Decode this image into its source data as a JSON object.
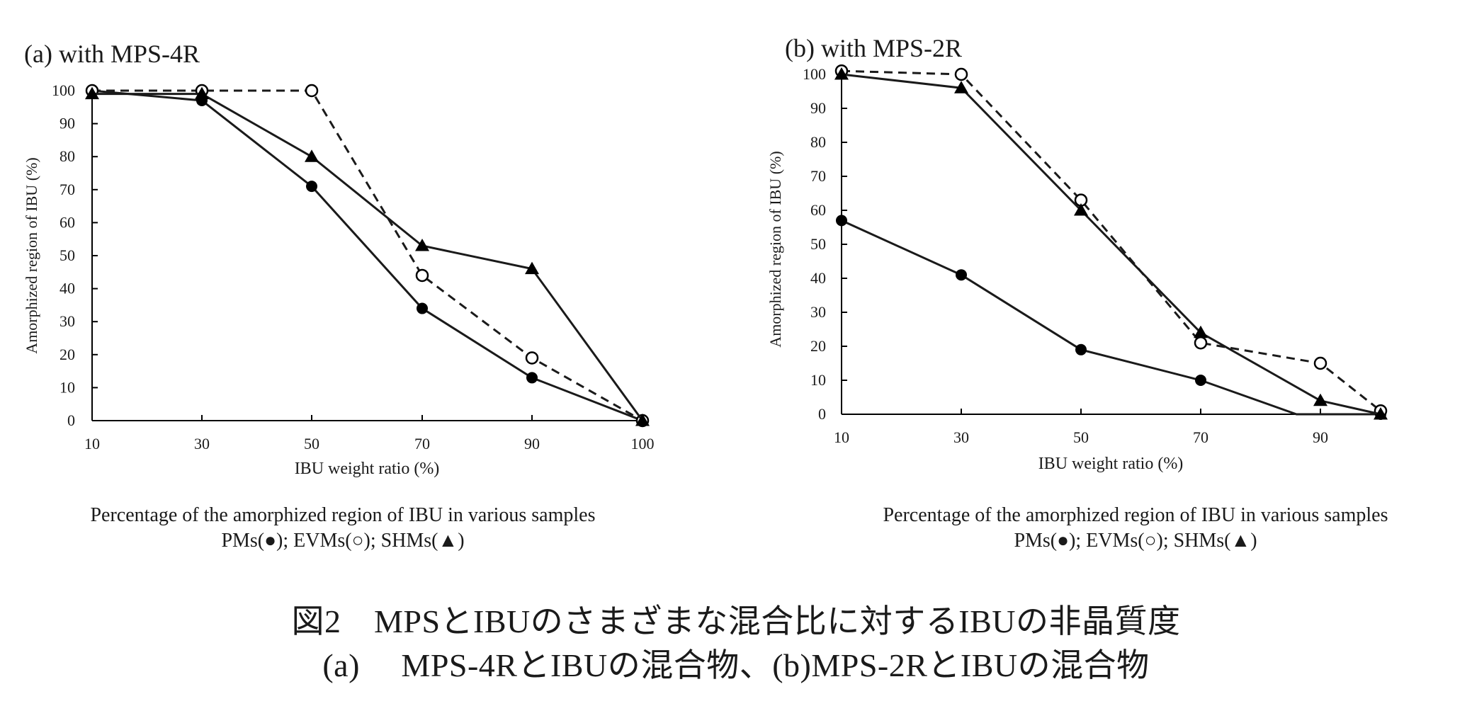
{
  "chart_data": [
    {
      "type": "line",
      "panel_label": "(a) with MPS-4R",
      "xlabel": "IBU weight ratio (%)",
      "ylabel": "Amorphized region of IBU (%)",
      "x_ticks": [
        "10",
        "30",
        "50",
        "70",
        "90",
        "100"
      ],
      "y_ticks": [
        "0",
        "10",
        "20",
        "30",
        "40",
        "50",
        "60",
        "70",
        "80",
        "90",
        "100"
      ],
      "ylim": [
        0,
        100
      ],
      "grid": false,
      "caption_line1": "Percentage of the amorphized region of IBU in various samples",
      "caption_line2": "PMs(●); EVMs(○); SHMs(▲)",
      "series": [
        {
          "marker": "filled-circle",
          "line": "solid",
          "x": [
            10,
            30,
            50,
            70,
            90,
            100
          ],
          "y": [
            100,
            97,
            71,
            34,
            13,
            0
          ]
        },
        {
          "marker": "open-circle",
          "line": "dashed",
          "x": [
            10,
            30,
            50,
            70,
            90,
            100
          ],
          "y": [
            100,
            100,
            100,
            44,
            19,
            0
          ]
        },
        {
          "marker": "filled-triangle",
          "line": "solid",
          "x": [
            10,
            30,
            50,
            70,
            90,
            100
          ],
          "y": [
            99,
            99,
            80,
            53,
            46,
            0
          ]
        }
      ]
    },
    {
      "type": "line",
      "panel_label": "(b) with MPS-2R",
      "xlabel": "IBU weight ratio (%)",
      "ylabel": "Amorphized region of IBU (%)",
      "x_ticks": [
        "10",
        "30",
        "50",
        "70",
        "90"
      ],
      "y_ticks": [
        "0",
        "10",
        "20",
        "30",
        "40",
        "50",
        "60",
        "70",
        "80",
        "90",
        "100"
      ],
      "ylim": [
        0,
        100
      ],
      "grid": false,
      "caption_line1": "Percentage of the amorphized region of IBU in various samples",
      "caption_line2": "PMs(●); EVMs(○); SHMs(▲)",
      "series": [
        {
          "marker": "filled-circle",
          "line": "solid",
          "x": [
            10,
            30,
            50,
            70,
            86,
            100
          ],
          "y": [
            57,
            41,
            19,
            10,
            0,
            0
          ],
          "marker_points": [
            0,
            1,
            2,
            3,
            5
          ]
        },
        {
          "marker": "open-circle",
          "line": "dashed",
          "x": [
            10,
            30,
            50,
            70,
            90,
            100
          ],
          "y": [
            101,
            100,
            63,
            21,
            15,
            1
          ]
        },
        {
          "marker": "filled-triangle",
          "line": "solid",
          "x": [
            10,
            30,
            50,
            70,
            90,
            100
          ],
          "y": [
            100,
            96,
            60,
            24,
            4,
            0
          ]
        }
      ]
    }
  ],
  "figure_caption": {
    "line1": "図2　MPSとIBUのさまざまな混合比に対するIBUの非晶質度",
    "line2": "(a)　 MPS-4RとIBUの混合物、(b)MPS-2RとIBUの混合物"
  }
}
